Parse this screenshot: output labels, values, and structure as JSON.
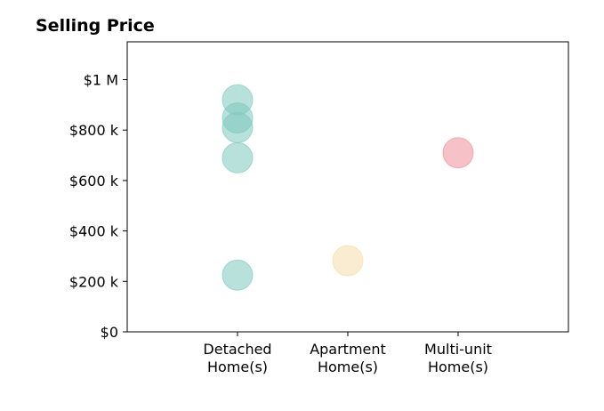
{
  "chart_data": {
    "type": "scatter",
    "title": "Selling Price",
    "xlabel": "",
    "ylabel": "",
    "categories": [
      [
        "Detached",
        "Home(s)"
      ],
      [
        "Apartment",
        "Home(s)"
      ],
      [
        "Multi-unit",
        "Home(s)"
      ]
    ],
    "xlim": [
      0,
      4
    ],
    "ylim": [
      0,
      1150000
    ],
    "y_ticks": [
      {
        "value": 0,
        "label": "$0"
      },
      {
        "value": 200000,
        "label": "$200 k"
      },
      {
        "value": 400000,
        "label": "$400 k"
      },
      {
        "value": 600000,
        "label": "$600 k"
      },
      {
        "value": 800000,
        "label": "$800 k"
      },
      {
        "value": 1000000,
        "label": "$1 M"
      }
    ],
    "grid": false,
    "series": [
      {
        "category_index": 0,
        "color": "#7ec9bd",
        "points": [
          920000,
          848000,
          810000,
          690000,
          225000
        ]
      },
      {
        "category_index": 1,
        "color": "#f6dcaa",
        "points": [
          282000
        ]
      },
      {
        "category_index": 2,
        "color": "#ee8f99",
        "points": [
          710000
        ]
      }
    ]
  }
}
